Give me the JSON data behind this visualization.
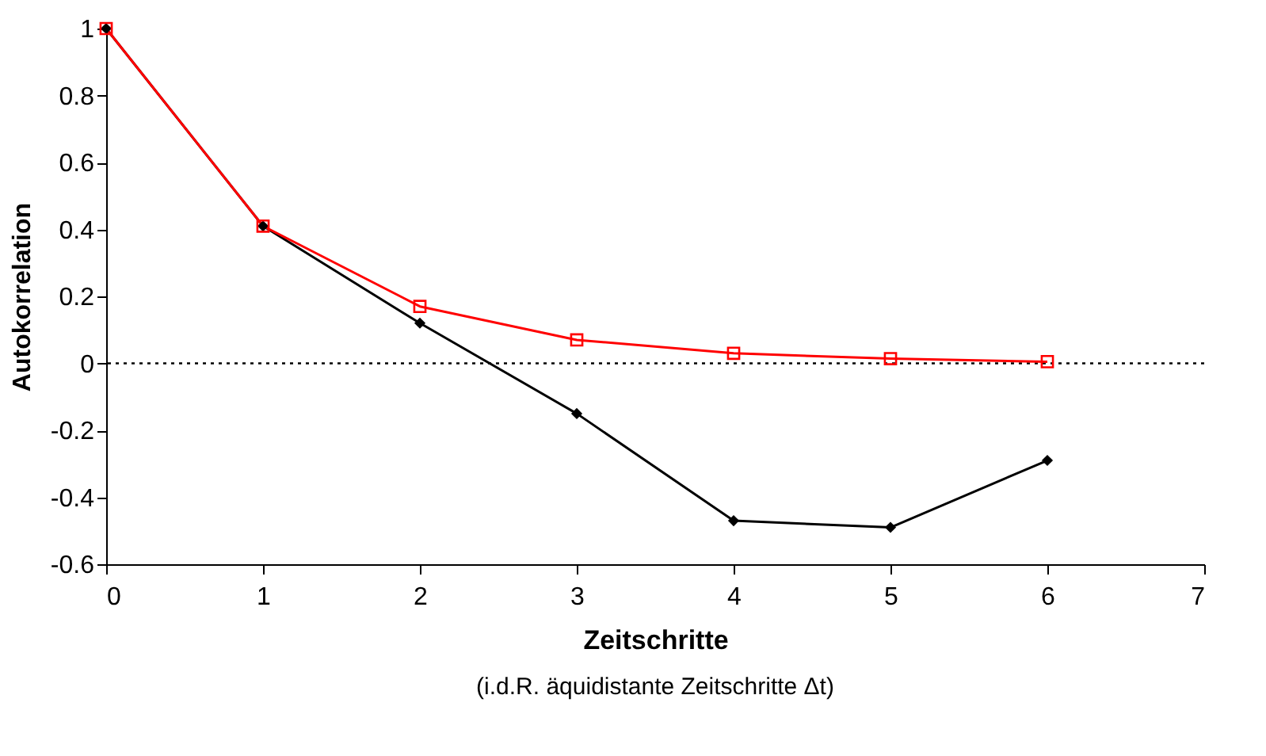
{
  "chart_data": {
    "type": "line",
    "xlabel": "Zeitschritte",
    "ylabel": "Autokorrelation",
    "annotations": [
      "(i.d.R. äquidistante Zeitschritte Δt)"
    ],
    "x": [
      0,
      1,
      2,
      3,
      4,
      5,
      6
    ],
    "series": [
      {
        "color": "#000000",
        "marker": "diamond",
        "values": [
          1,
          0.41,
          0.12,
          -0.15,
          -0.47,
          -0.49,
          -0.29
        ]
      },
      {
        "color": "#ff0000",
        "marker": "square",
        "values": [
          1,
          0.41,
          0.17,
          0.07,
          0.03,
          0.014,
          0.005
        ]
      }
    ],
    "xlim": [
      0,
      7
    ],
    "xticks": [
      0,
      1,
      2,
      3,
      4,
      5,
      6,
      7
    ],
    "ylim": [
      -0.6,
      1
    ],
    "yticks": [
      -0.6,
      -0.4,
      -0.2,
      0,
      0.2,
      0.4,
      0.6,
      0.8,
      1
    ],
    "ref_lines": [
      {
        "axis": "y",
        "value": 0,
        "line_style": "dotted",
        "color": "#000000"
      }
    ],
    "grid": false
  }
}
